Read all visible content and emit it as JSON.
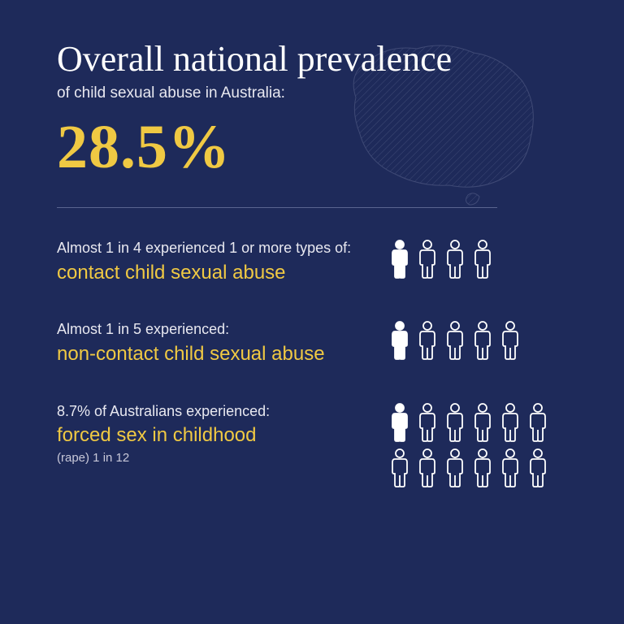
{
  "colors": {
    "background": "#1e2a5a",
    "white": "#ffffff",
    "accent": "#f0c943",
    "muted": "#e8e8f0",
    "divider": "#5a6490",
    "icon_outline": "#ffffff",
    "icon_fill": "#ffffff",
    "map_stroke": "#a0a8c8"
  },
  "typography": {
    "title_fontsize": 44,
    "subtitle_fontsize": 19,
    "bigstat_fontsize": 76,
    "intro_fontsize": 18,
    "highlight_fontsize": 24,
    "note_fontsize": 15
  },
  "header": {
    "title": "Overall national prevalence",
    "subtitle": "of child sexual abuse in Australia:",
    "big_stat": "28.5%"
  },
  "stats": [
    {
      "intro": "Almost 1 in 4 experienced 1 or more types of:",
      "highlight": "contact child sexual abuse",
      "note": "",
      "figures_total": 4,
      "figures_filled": 1
    },
    {
      "intro": "Almost 1 in 5 experienced:",
      "highlight": "non-contact child sexual abuse",
      "note": "",
      "figures_total": 5,
      "figures_filled": 1
    },
    {
      "intro": "8.7% of Australians experienced:",
      "highlight": "forced sex in childhood",
      "note": "(rape) 1 in 12",
      "figures_total": 12,
      "figures_filled": 1
    }
  ]
}
